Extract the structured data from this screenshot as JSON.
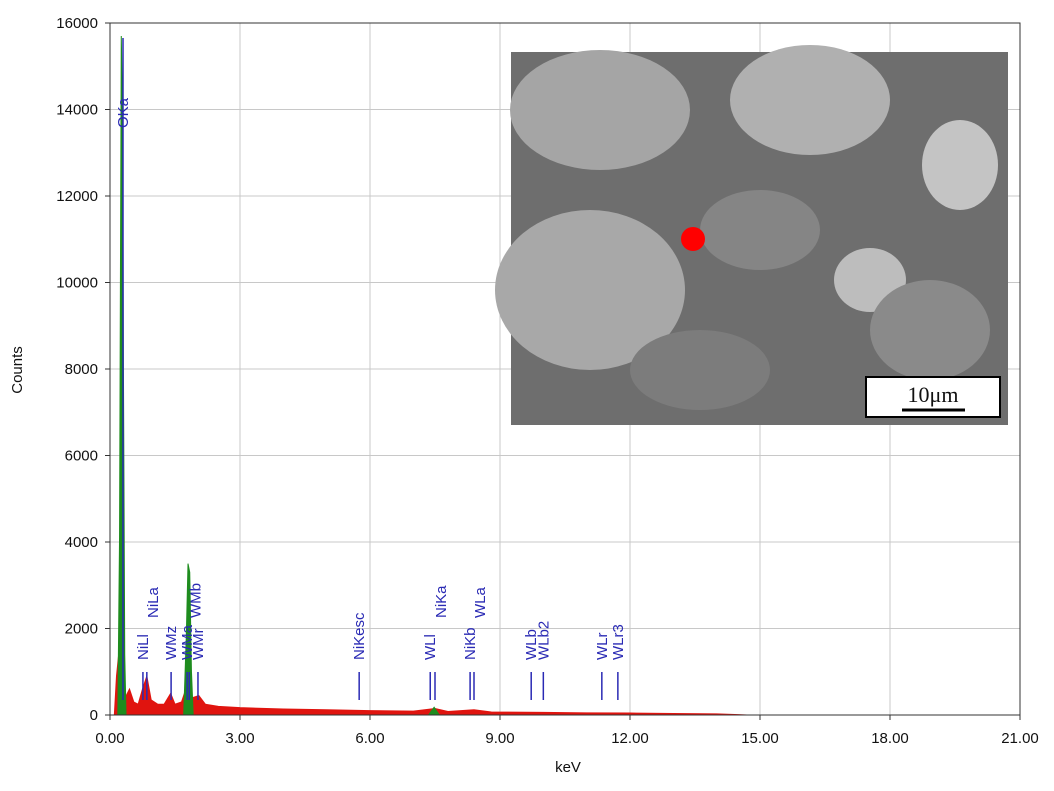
{
  "chart_data": {
    "type": "spectrum",
    "xlabel": "keV",
    "ylabel": "Counts",
    "xlim": [
      0,
      21
    ],
    "ylim": [
      0,
      16000
    ],
    "xticks": [
      {
        "value": 0,
        "label": "0.00"
      },
      {
        "value": 3,
        "label": "3.00"
      },
      {
        "value": 6,
        "label": "6.00"
      },
      {
        "value": 9,
        "label": "9.00"
      },
      {
        "value": 12,
        "label": "12.00"
      },
      {
        "value": 15,
        "label": "15.00"
      },
      {
        "value": 18,
        "label": "18.00"
      },
      {
        "value": 21,
        "label": "21.00"
      }
    ],
    "yticks": [
      0,
      2000,
      4000,
      6000,
      8000,
      10000,
      12000,
      14000,
      16000
    ],
    "grid": true,
    "series": [
      {
        "color": "#e0140f",
        "x": [
          0.1,
          0.15,
          0.2,
          0.25,
          0.35,
          0.45,
          0.55,
          0.65,
          0.75,
          0.85,
          0.95,
          1.1,
          1.25,
          1.4,
          1.5,
          1.65,
          1.75,
          1.9,
          2.05,
          2.2,
          2.5,
          3.0,
          4.0,
          5.0,
          6.0,
          7.0,
          7.5,
          7.8,
          8.4,
          8.8,
          10.0,
          11.0,
          12.0,
          13.0,
          14.0,
          14.5,
          14.7
        ],
        "values": [
          0,
          900,
          1400,
          600,
          400,
          600,
          300,
          250,
          600,
          900,
          350,
          250,
          250,
          500,
          250,
          300,
          600,
          400,
          450,
          250,
          200,
          170,
          140,
          120,
          100,
          90,
          150,
          80,
          120,
          70,
          60,
          50,
          45,
          35,
          25,
          10,
          0
        ]
      },
      {
        "color": "#1e8c1e",
        "x": [
          0.18,
          0.22,
          0.26,
          0.29,
          0.31,
          0.34,
          0.37,
          null,
          1.7,
          1.76,
          1.8,
          1.84,
          1.88,
          1.92,
          null,
          7.35,
          7.48,
          7.6
        ],
        "values": [
          0,
          4100,
          15700,
          14000,
          8000,
          1400,
          0,
          null,
          0,
          1800,
          3500,
          3300,
          1000,
          0,
          null,
          0,
          180,
          0
        ]
      }
    ],
    "peak_labels": [
      {
        "label": "OKa",
        "x": 0.3
      },
      {
        "label": "NiLl",
        "x": 0.76
      },
      {
        "label": "NiLa",
        "x": 0.85
      },
      {
        "label": "WMz",
        "x": 1.41
      },
      {
        "label": "WMa",
        "x": 1.78
      },
      {
        "label": "WMb",
        "x": 1.83
      },
      {
        "label": "WMr",
        "x": 2.03
      },
      {
        "label": "NiKesc",
        "x": 5.75
      },
      {
        "label": "WLl",
        "x": 7.39
      },
      {
        "label": "NiKa",
        "x": 7.5
      },
      {
        "label": "NiKb",
        "x": 8.31
      },
      {
        "label": "WLa",
        "x": 8.4
      },
      {
        "label": "WLb",
        "x": 9.72
      },
      {
        "label": "WLb2",
        "x": 10.0
      },
      {
        "label": "WLr",
        "x": 11.35
      },
      {
        "label": "WLr3",
        "x": 11.72
      }
    ],
    "inset": {
      "scale_bar": "10μm"
    }
  }
}
